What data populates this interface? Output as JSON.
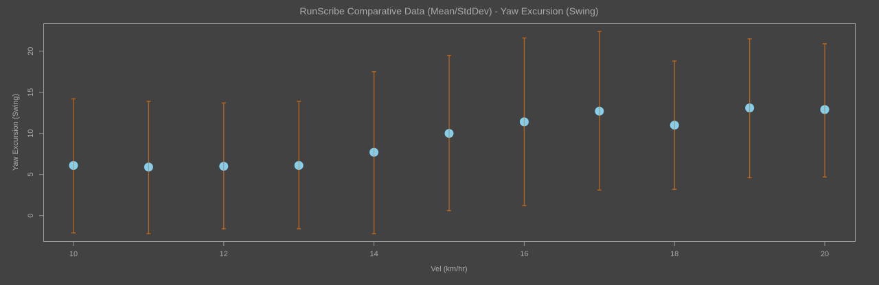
{
  "chart_data": {
    "type": "scatter",
    "title": "RunScribe Comparative Data (Mean/StdDev) - Yaw Excursion (Swing)",
    "xlabel": "Vel (km/hr)",
    "ylabel": "Yaw Excursion (Swing)",
    "x": [
      10,
      11,
      12,
      13,
      14,
      15,
      16,
      17,
      18,
      19,
      20
    ],
    "series": [
      {
        "name": "mean",
        "values": [
          6.1,
          5.9,
          6.0,
          6.1,
          7.7,
          10.0,
          11.4,
          12.7,
          11.0,
          13.1,
          12.9
        ]
      },
      {
        "name": "upper (mean+sd)",
        "values": [
          14.2,
          13.9,
          13.7,
          13.9,
          17.5,
          19.5,
          21.6,
          22.4,
          18.8,
          21.5,
          20.9
        ]
      },
      {
        "name": "lower (mean-sd)",
        "values": [
          -2.1,
          -2.2,
          -1.6,
          -1.6,
          -2.2,
          0.6,
          1.2,
          3.1,
          3.2,
          4.6,
          4.7
        ]
      }
    ],
    "xticks": [
      10,
      12,
      14,
      16,
      18,
      20
    ],
    "yticks": [
      0,
      5,
      10,
      15,
      20
    ],
    "xlim": [
      9.6,
      20.4
    ],
    "ylim": [
      -3.1,
      23.4
    ],
    "grid": false,
    "legend": null
  },
  "colors": {
    "background": "#424242",
    "text": "#a9a9a9",
    "axis": "#9a9a9a",
    "point": "#87ceeb",
    "errorbar": "#b8651e"
  },
  "labels": {
    "title": "RunScribe Comparative Data (Mean/StdDev) - Yaw Excursion (Swing)",
    "xlabel": "Vel (km/hr)",
    "ylabel": "Yaw Excursion (Swing)"
  }
}
